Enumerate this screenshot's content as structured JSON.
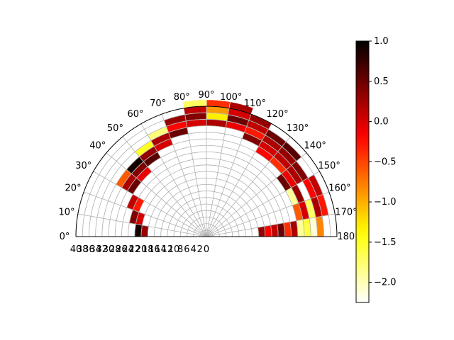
{
  "chart_data": {
    "type": "heatmap",
    "title": "",
    "projection": "polar-half",
    "theta_range_deg": [
      0,
      180
    ],
    "theta_ticks": [
      "0°",
      "10°",
      "20°",
      "30°",
      "40°",
      "50°",
      "60°",
      "70°",
      "80°",
      "90°",
      "100°",
      "110°",
      "120°",
      "130°",
      "140°",
      "150°",
      "160°",
      "170°",
      "180°"
    ],
    "radial_ticks": [
      "40",
      "38",
      "36",
      "34",
      "32",
      "30",
      "28",
      "26",
      "24",
      "22",
      "20",
      "18",
      "16",
      "14",
      "12",
      "10",
      "8",
      "6",
      "4",
      "2",
      "0"
    ],
    "r_range": [
      0,
      40
    ],
    "grid": true,
    "colormap": "hot_r",
    "colorbar": {
      "vmin": -2.25,
      "vmax": 1.0,
      "ticks": [
        "1.0",
        "0.5",
        "0.0",
        "−0.5",
        "−1.0",
        "−1.5",
        "−2.0"
      ],
      "tick_values": [
        1.0,
        0.5,
        0.0,
        -0.5,
        -1.0,
        -1.5,
        -2.0
      ]
    },
    "cells": [
      {
        "r": 36,
        "theta": [
          10,
          20
        ],
        "v": -0.3
      },
      {
        "r": 34,
        "theta": [
          10,
          20
        ],
        "v": 0.2
      },
      {
        "r": 32,
        "theta": [
          10,
          20
        ],
        "v": -1.7
      },
      {
        "r": 30,
        "theta": [
          10,
          20
        ],
        "v": 0.0
      },
      {
        "r": 28,
        "theta": [
          10,
          20
        ],
        "v": -0.6
      },
      {
        "r": 36,
        "theta": [
          20,
          30
        ],
        "v": 0.1
      },
      {
        "r": 34,
        "theta": [
          20,
          30
        ],
        "v": -0.2
      },
      {
        "r": 30,
        "theta": [
          20,
          30
        ],
        "v": 0.3
      },
      {
        "r": 28,
        "theta": [
          20,
          30
        ],
        "v": -1.9
      },
      {
        "r": 34,
        "theta": [
          30,
          40
        ],
        "v": 0.4
      },
      {
        "r": 32,
        "theta": [
          30,
          40
        ],
        "v": 0.2
      },
      {
        "r": 30,
        "theta": [
          30,
          40
        ],
        "v": -0.1
      },
      {
        "r": 28,
        "theta": [
          30,
          40
        ],
        "v": 0.5
      },
      {
        "r": 36,
        "theta": [
          40,
          50
        ],
        "v": 0.6
      },
      {
        "r": 34,
        "theta": [
          40,
          50
        ],
        "v": 0.3
      },
      {
        "r": 32,
        "theta": [
          40,
          50
        ],
        "v": 0.1
      },
      {
        "r": 30,
        "theta": [
          40,
          50
        ],
        "v": -0.4
      },
      {
        "r": 36,
        "theta": [
          50,
          60
        ],
        "v": 0.5
      },
      {
        "r": 34,
        "theta": [
          50,
          60
        ],
        "v": 0.2
      },
      {
        "r": 32,
        "theta": [
          50,
          60
        ],
        "v": 0.0
      },
      {
        "r": 30,
        "theta": [
          50,
          60
        ],
        "v": -0.2
      },
      {
        "r": 38,
        "theta": [
          60,
          70
        ],
        "v": 0.3
      },
      {
        "r": 36,
        "theta": [
          60,
          70
        ],
        "v": 0.1
      },
      {
        "r": 34,
        "theta": [
          60,
          70
        ],
        "v": -0.3
      },
      {
        "r": 32,
        "theta": [
          60,
          70
        ],
        "v": 0.4
      },
      {
        "r": 40,
        "theta": [
          70,
          80
        ],
        "v": 0.2
      },
      {
        "r": 38,
        "theta": [
          70,
          80
        ],
        "v": 0.0
      },
      {
        "r": 36,
        "theta": [
          70,
          80
        ],
        "v": 0.5
      },
      {
        "r": 34,
        "theta": [
          70,
          80
        ],
        "v": -0.1
      },
      {
        "r": 40,
        "theta": [
          80,
          90
        ],
        "v": -0.4
      },
      {
        "r": 38,
        "theta": [
          80,
          90
        ],
        "v": -0.9
      },
      {
        "r": 36,
        "theta": [
          80,
          90
        ],
        "v": -1.3
      },
      {
        "r": 34,
        "theta": [
          80,
          90
        ],
        "v": 0.2
      },
      {
        "r": 40,
        "theta": [
          90,
          100
        ],
        "v": -1.7
      },
      {
        "r": 38,
        "theta": [
          90,
          100
        ],
        "v": 0.1
      },
      {
        "r": 36,
        "theta": [
          90,
          100
        ],
        "v": 0.4
      },
      {
        "r": 34,
        "theta": [
          90,
          100
        ],
        "v": 0.0
      },
      {
        "r": 36,
        "theta": [
          100,
          110
        ],
        "v": 0.3
      },
      {
        "r": 34,
        "theta": [
          100,
          110
        ],
        "v": -0.2
      },
      {
        "r": 32,
        "theta": [
          100,
          110
        ],
        "v": 0.5
      },
      {
        "r": 34,
        "theta": [
          110,
          120
        ],
        "v": -1.8
      },
      {
        "r": 32,
        "theta": [
          110,
          120
        ],
        "v": 0.2
      },
      {
        "r": 30,
        "theta": [
          110,
          120
        ],
        "v": 0.0
      },
      {
        "r": 32,
        "theta": [
          120,
          130
        ],
        "v": -1.5
      },
      {
        "r": 30,
        "theta": [
          120,
          130
        ],
        "v": 0.3
      },
      {
        "r": 28,
        "theta": [
          120,
          130
        ],
        "v": 0.6
      },
      {
        "r": 30,
        "theta": [
          130,
          140
        ],
        "v": 0.9
      },
      {
        "r": 28,
        "theta": [
          130,
          140
        ],
        "v": 0.4
      },
      {
        "r": 26,
        "theta": [
          130,
          140
        ],
        "v": -0.1
      },
      {
        "r": 30,
        "theta": [
          140,
          150
        ],
        "v": -0.6
      },
      {
        "r": 28,
        "theta": [
          140,
          150
        ],
        "v": 0.2
      },
      {
        "r": 26,
        "theta": [
          140,
          150
        ],
        "v": 0.5
      },
      {
        "r": 24,
        "theta": [
          150,
          160
        ],
        "v": 0.1
      },
      {
        "r": 22,
        "theta": [
          150,
          160
        ],
        "v": -0.3
      },
      {
        "r": 22,
        "theta": [
          160,
          170
        ],
        "v": 0.4
      },
      {
        "r": 20,
        "theta": [
          160,
          170
        ],
        "v": 0.0
      },
      {
        "r": 20,
        "theta": [
          170,
          180
        ],
        "v": 0.9
      },
      {
        "r": 18,
        "theta": [
          170,
          180
        ],
        "v": 0.3
      },
      {
        "r": 34,
        "theta": [
          0,
          10
        ],
        "v": -0.8
      },
      {
        "r": 32,
        "theta": [
          0,
          10
        ],
        "v": -2.1
      },
      {
        "r": 30,
        "theta": [
          0,
          10
        ],
        "v": -1.6
      },
      {
        "r": 28,
        "theta": [
          0,
          10
        ],
        "v": -1.9
      },
      {
        "r": 26,
        "theta": [
          0,
          10
        ],
        "v": 0.2
      },
      {
        "r": 24,
        "theta": [
          0,
          10
        ],
        "v": -0.4
      },
      {
        "r": 22,
        "theta": [
          0,
          10
        ],
        "v": 0.5
      },
      {
        "r": 20,
        "theta": [
          0,
          10
        ],
        "v": 0.1
      },
      {
        "r": 18,
        "theta": [
          0,
          10
        ],
        "v": -0.2
      },
      {
        "r": 16,
        "theta": [
          0,
          10
        ],
        "v": 0.3
      }
    ]
  }
}
